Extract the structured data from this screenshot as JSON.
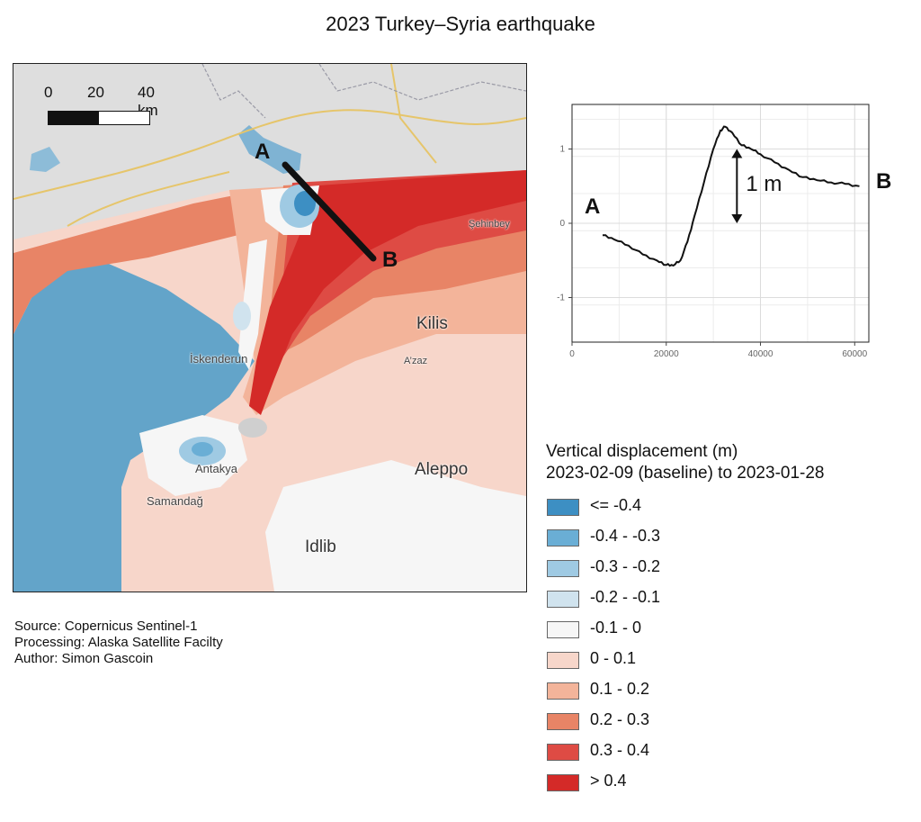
{
  "title": "2023 Turkey–Syria earthquake",
  "map": {
    "scale_labels": [
      "0",
      "20",
      "40 km"
    ],
    "profile_start_label": "A",
    "profile_end_label": "B",
    "places": {
      "sehinbey": "Şehinbey",
      "kilis": "Kilis",
      "iskenderun": "İskenderun",
      "azaz": "A’zaz",
      "antakya": "Antakya",
      "samandag": "Samandağ",
      "aleppo": "Aleppo",
      "idlib": "Idlib"
    },
    "colors": {
      "sea": "#63a4c9",
      "land": "#dedede",
      "rupture": "#d42a28"
    }
  },
  "chart_data": {
    "type": "line",
    "x": [
      6500,
      9000,
      12000,
      15000,
      18000,
      20000,
      21500,
      23000,
      24500,
      26000,
      28000,
      30000,
      31500,
      32500,
      34000,
      36000,
      38000,
      40000,
      43000,
      46000,
      49000,
      52000,
      55000,
      58000,
      61000
    ],
    "series": [
      {
        "values": [
          -0.16,
          -0.22,
          -0.3,
          -0.42,
          -0.5,
          -0.56,
          -0.57,
          -0.5,
          -0.25,
          0.1,
          0.55,
          1.0,
          1.25,
          1.3,
          1.22,
          1.05,
          1.0,
          0.93,
          0.82,
          0.72,
          0.62,
          0.58,
          0.55,
          0.53,
          0.5
        ]
      }
    ],
    "xlim": [
      0,
      63000
    ],
    "ylim": [
      -1.6,
      1.6
    ],
    "x_ticks": [
      0,
      20000,
      40000,
      60000
    ],
    "y_ticks": [
      -1,
      0,
      1
    ],
    "x_tick_labels": [
      "0",
      "20000",
      "40000",
      "60000"
    ],
    "y_tick_labels": [
      "-1",
      "0",
      "1"
    ],
    "grid": true,
    "start_label": "A",
    "end_label": "B",
    "annotation": "1 m",
    "annotation_arrow_y": [
      0,
      1
    ]
  },
  "legend": {
    "title_line1": "Vertical displacement (m)",
    "title_line2": "2023-02-09 (baseline) to 2023-01-28",
    "items": [
      {
        "label": "<= -0.4",
        "color": "#3d8fc3"
      },
      {
        "label": "-0.4 - -0.3",
        "color": "#6aaed5"
      },
      {
        "label": "-0.3 - -0.2",
        "color": "#9fcae3"
      },
      {
        "label": "-0.2 - -0.1",
        "color": "#d0e3ee"
      },
      {
        "label": "-0.1 - 0",
        "color": "#f6f6f6"
      },
      {
        "label": "0 - 0.1",
        "color": "#f7d6ca"
      },
      {
        "label": "0.1 - 0.2",
        "color": "#f3b49a"
      },
      {
        "label": "0.2 - 0.3",
        "color": "#e88466"
      },
      {
        "label": "0.3 - 0.4",
        "color": "#de4b44"
      },
      {
        "label": "> 0.4",
        "color": "#d42a28"
      }
    ]
  },
  "credits": {
    "source": "Source: Copernicus Sentinel-1",
    "processing": "Processing: Alaska Satellite Facilty",
    "author": "Author: Simon Gascoin"
  }
}
